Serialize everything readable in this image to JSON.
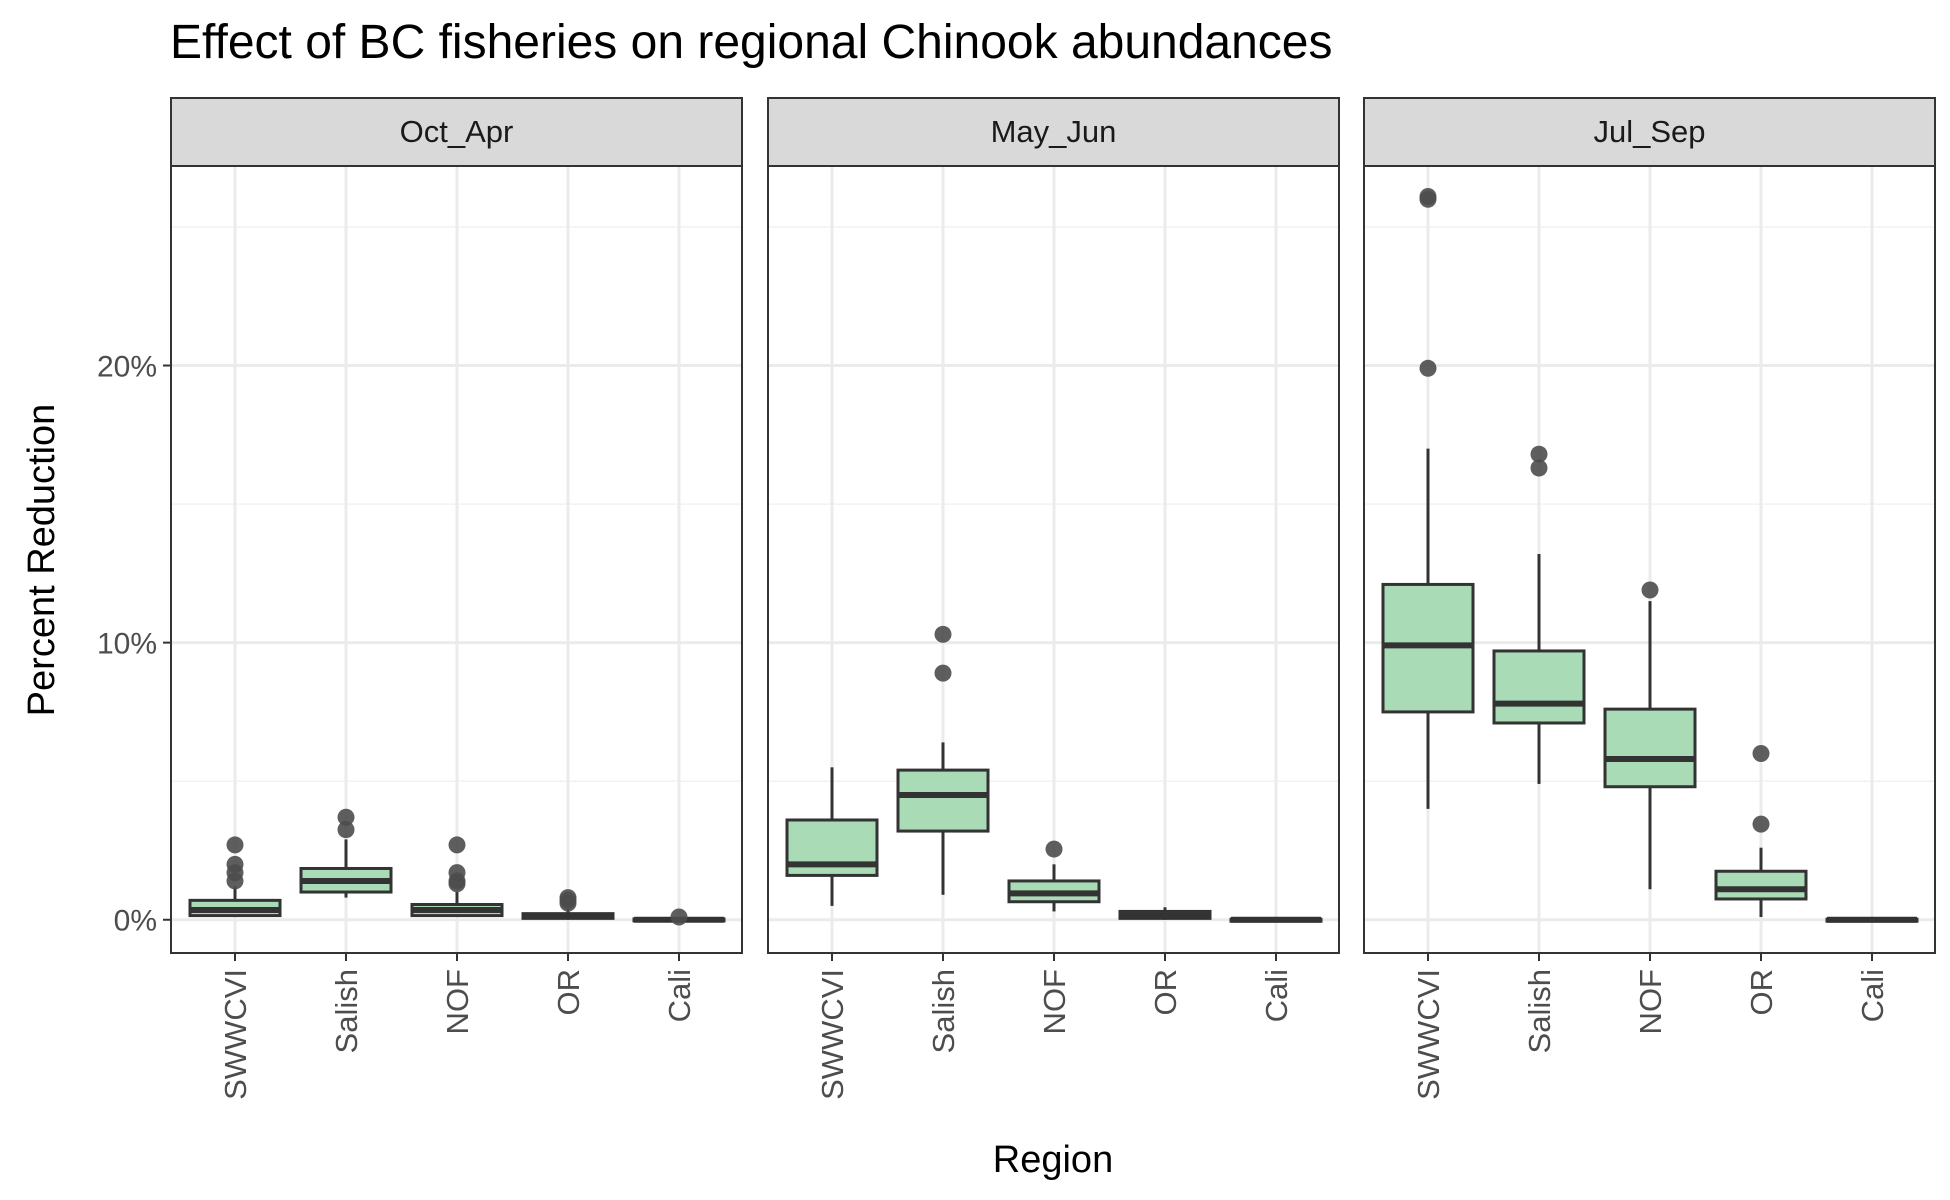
{
  "chart_data": {
    "type": "boxplot",
    "title": "Effect of BC fisheries on regional Chinook abundances",
    "xlabel": "Region",
    "ylabel": "Percent Reduction",
    "ylim": [
      -1.2,
      27.2
    ],
    "y_ticks": [
      0,
      10,
      20
    ],
    "y_tick_labels": [
      "0%",
      "10%",
      "20%"
    ],
    "y_minor_gridlines": [
      5,
      15,
      25
    ],
    "grid": true,
    "categories": [
      "SWWCVI",
      "Salish",
      "NOF",
      "OR",
      "Cali"
    ],
    "box_fill": "#a8dbb6",
    "box_stroke": "#333333",
    "outlier_color": "#4d4d4d",
    "strip_fill": "#d9d9d9",
    "panels": [
      {
        "label": "Oct_Apr",
        "boxes": [
          {
            "category": "SWWCVI",
            "whisker_low": 0.1,
            "q1": 0.15,
            "median": 0.35,
            "q3": 0.7,
            "whisker_high": 1.2,
            "outliers": [
              1.4,
              1.7,
              2.0,
              2.7
            ]
          },
          {
            "category": "Salish",
            "whisker_low": 0.8,
            "q1": 1.0,
            "median": 1.4,
            "q3": 1.85,
            "whisker_high": 2.9,
            "outliers": [
              3.25,
              3.7
            ]
          },
          {
            "category": "NOF",
            "whisker_low": 0.1,
            "q1": 0.15,
            "median": 0.35,
            "q3": 0.55,
            "whisker_high": 1.0,
            "outliers": [
              1.3,
              1.4,
              1.7,
              2.7
            ]
          },
          {
            "category": "OR",
            "whisker_low": 0.0,
            "q1": 0.05,
            "median": 0.12,
            "q3": 0.22,
            "whisker_high": 0.4,
            "outliers": [
              0.6,
              0.7,
              0.8
            ]
          },
          {
            "category": "Cali",
            "whisker_low": -0.05,
            "q1": -0.02,
            "median": 0.0,
            "q3": 0.03,
            "whisker_high": 0.07,
            "outliers": [
              0.1
            ]
          }
        ]
      },
      {
        "label": "May_Jun",
        "boxes": [
          {
            "category": "SWWCVI",
            "whisker_low": 0.5,
            "q1": 1.6,
            "median": 2.0,
            "q3": 3.6,
            "whisker_high": 5.5,
            "outliers": []
          },
          {
            "category": "Salish",
            "whisker_low": 0.9,
            "q1": 3.2,
            "median": 4.5,
            "q3": 5.4,
            "whisker_high": 6.4,
            "outliers": [
              8.9,
              10.3
            ]
          },
          {
            "category": "NOF",
            "whisker_low": 0.3,
            "q1": 0.65,
            "median": 0.95,
            "q3": 1.4,
            "whisker_high": 2.0,
            "outliers": [
              2.55
            ]
          },
          {
            "category": "OR",
            "whisker_low": 0.0,
            "q1": 0.05,
            "median": 0.15,
            "q3": 0.3,
            "whisker_high": 0.45,
            "outliers": []
          },
          {
            "category": "Cali",
            "whisker_low": -0.05,
            "q1": -0.03,
            "median": 0.0,
            "q3": 0.02,
            "whisker_high": 0.05,
            "outliers": []
          }
        ]
      },
      {
        "label": "Jul_Sep",
        "boxes": [
          {
            "category": "SWWCVI",
            "whisker_low": 4.0,
            "q1": 7.5,
            "median": 9.9,
            "q3": 12.1,
            "whisker_high": 17.0,
            "outliers": [
              19.9,
              26.0,
              26.1
            ]
          },
          {
            "category": "Salish",
            "whisker_low": 4.9,
            "q1": 7.1,
            "median": 7.8,
            "q3": 9.7,
            "whisker_high": 13.2,
            "outliers": [
              16.3,
              16.8
            ]
          },
          {
            "category": "NOF",
            "whisker_low": 1.1,
            "q1": 4.8,
            "median": 5.8,
            "q3": 7.6,
            "whisker_high": 11.5,
            "outliers": [
              11.9
            ]
          },
          {
            "category": "OR",
            "whisker_low": 0.1,
            "q1": 0.75,
            "median": 1.1,
            "q3": 1.75,
            "whisker_high": 2.6,
            "outliers": [
              3.45,
              6.0
            ]
          },
          {
            "category": "Cali",
            "whisker_low": -0.02,
            "q1": -0.01,
            "median": 0.0,
            "q3": 0.02,
            "whisker_high": 0.05,
            "outliers": []
          }
        ]
      }
    ]
  }
}
